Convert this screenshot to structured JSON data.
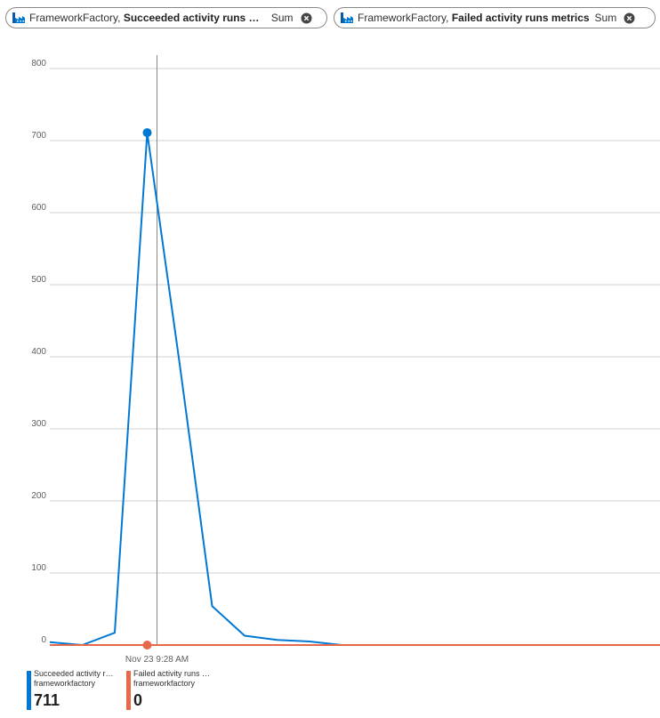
{
  "pills": [
    {
      "resource": "FrameworkFactory,",
      "metric": "Succeeded activity runs metrics",
      "aggregation": "Sum"
    },
    {
      "resource": "FrameworkFactory,",
      "metric": "Failed activity runs metrics",
      "aggregation": "Sum"
    }
  ],
  "colors": {
    "succeeded": "#0078d4",
    "failed": "#e8684a",
    "grid": "#d2d0ce",
    "cursor": "#8a8886"
  },
  "icons": {
    "resource": "data-factory-icon",
    "remove": "close-circle-icon"
  },
  "crosshair_label": "Nov 23 9:28 AM",
  "legend": [
    {
      "name": "Succeeded activity runs metrics",
      "resource": "frameworkfactory",
      "value": "711"
    },
    {
      "name": "Failed activity runs metrics",
      "resource": "frameworkfactory",
      "value": "0"
    }
  ],
  "chart_data": {
    "type": "line",
    "ylim": [
      0,
      800
    ],
    "yticks": [
      0,
      100,
      200,
      300,
      400,
      500,
      600,
      700,
      800
    ],
    "crosshair_index": 3,
    "grid": true,
    "legend_placement": "bottom-left",
    "series": [
      {
        "name": "Succeeded activity runs metrics",
        "values": [
          4,
          0,
          17,
          711,
          390,
          54,
          13,
          7,
          5,
          0,
          0,
          0,
          0,
          0,
          0,
          0,
          0,
          0,
          0
        ],
        "highlight_index": 3
      },
      {
        "name": "Failed activity runs metrics",
        "values": [
          0,
          0,
          0,
          0,
          0,
          0,
          0,
          0,
          0,
          0,
          0,
          0,
          0,
          0,
          0,
          0,
          0,
          0,
          0
        ],
        "highlight_index": 3
      }
    ]
  }
}
